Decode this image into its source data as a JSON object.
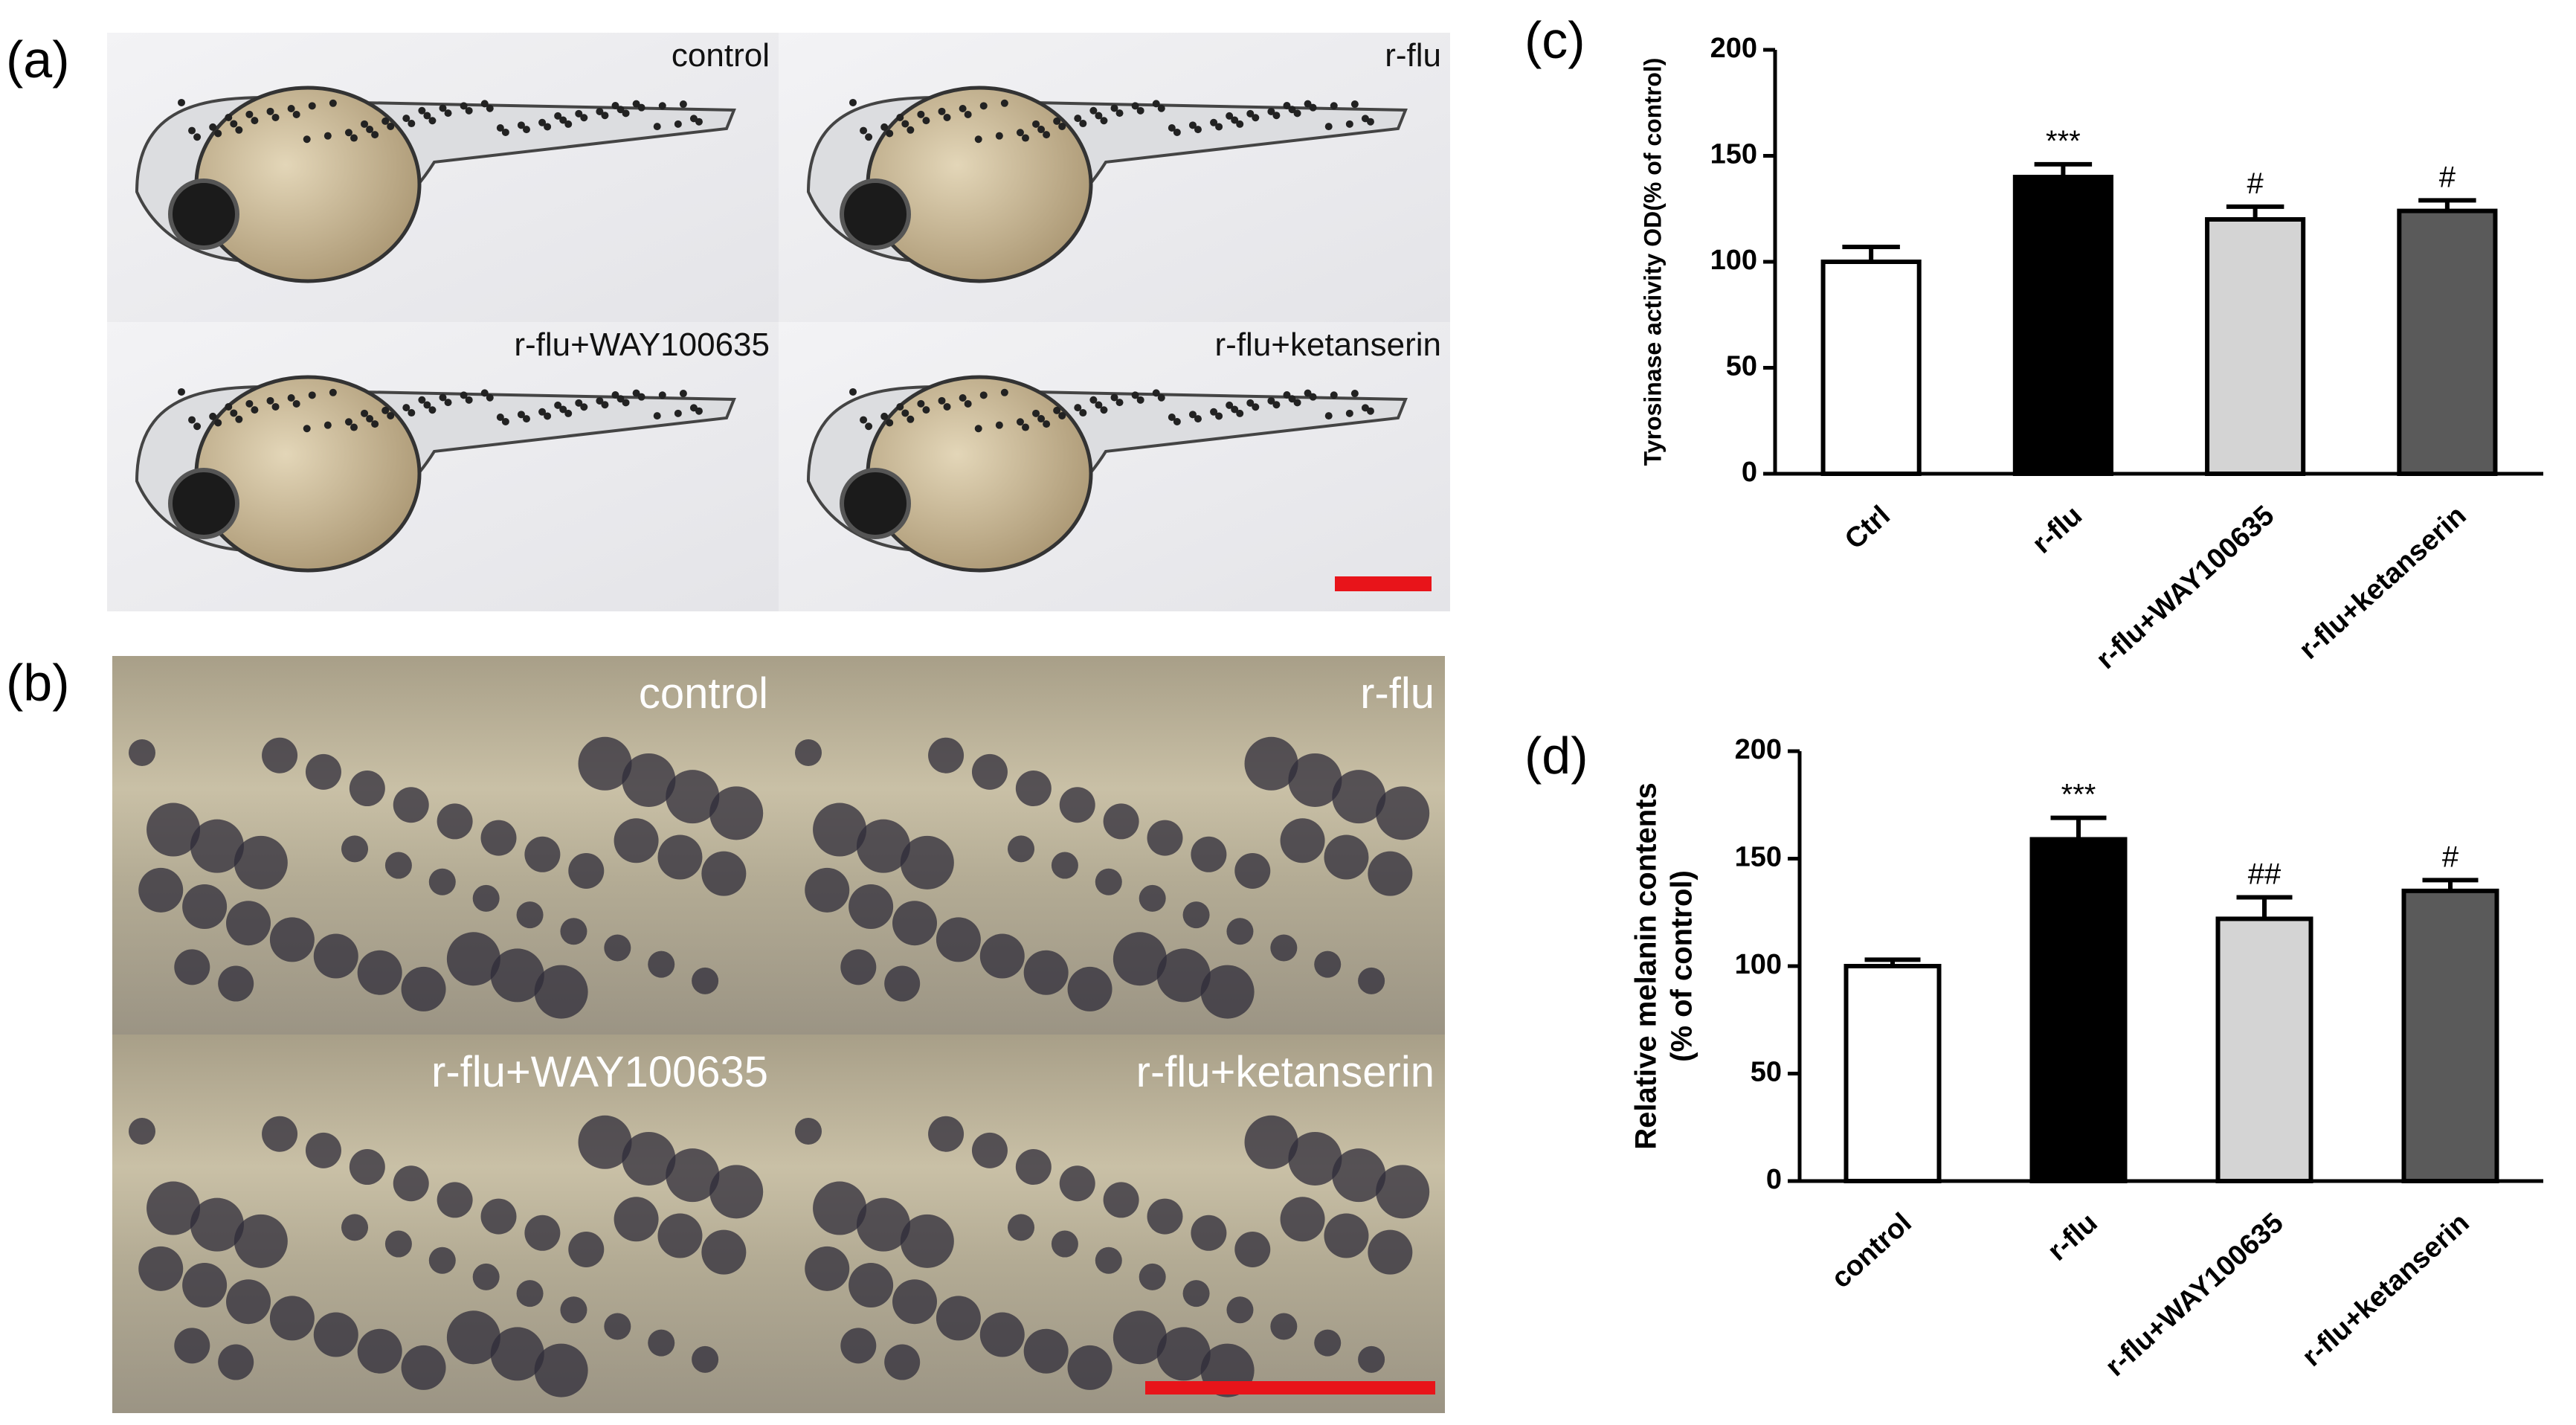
{
  "panels": {
    "a": {
      "label": "(a)",
      "images": [
        "control",
        "r-flu",
        "r-flu+WAY100635",
        "r-flu+ketanserin"
      ]
    },
    "b": {
      "label": "(b)",
      "images": [
        "control",
        "r-flu",
        "r-flu+WAY100635",
        "r-flu+ketanserin"
      ]
    }
  },
  "chart_data": [
    {
      "type": "bar",
      "panel_label": "(c)",
      "ylabel": [
        "Tyrosinase activity OD(% of control)"
      ],
      "categories": [
        "Ctrl",
        "r-flu",
        "r-flu+WAY100635",
        "r-flu+ketanserin"
      ],
      "values": [
        100,
        140,
        120,
        124
      ],
      "errors": [
        7,
        6,
        6,
        5
      ],
      "annotations": [
        null,
        "***",
        "#",
        "#"
      ],
      "colors": [
        "#ffffff",
        "#000000",
        "#d4d4d4",
        "#5a5a5a"
      ],
      "ylim": [
        0,
        200
      ],
      "yticks": [
        0,
        50,
        100,
        150,
        200
      ]
    },
    {
      "type": "bar",
      "panel_label": "(d)",
      "ylabel": [
        "Relative melanin contents",
        "(% of control)"
      ],
      "categories": [
        "control",
        "r-flu",
        "r-flu+WAY100635",
        "r-flu+ketanserin"
      ],
      "values": [
        100,
        159,
        122,
        135
      ],
      "errors": [
        3,
        10,
        10,
        5
      ],
      "annotations": [
        null,
        "***",
        "##",
        "#"
      ],
      "colors": [
        "#ffffff",
        "#000000",
        "#d4d4d4",
        "#5a5a5a"
      ],
      "ylim": [
        0,
        200
      ],
      "yticks": [
        0,
        50,
        100,
        150,
        200
      ]
    }
  ]
}
